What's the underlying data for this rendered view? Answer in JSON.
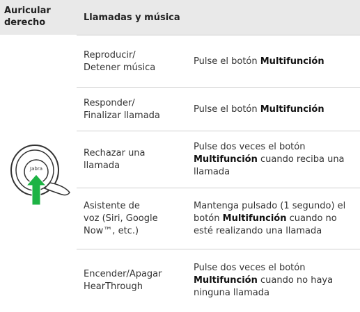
{
  "header": {
    "left": "Auricular derecho",
    "right": "Llamadas y música"
  },
  "rows": [
    {
      "action": [
        "Reproducir/",
        "Detener música"
      ],
      "description": [
        {
          "text": "Pulse el botón "
        },
        {
          "text": "Multifunción",
          "strong": true
        }
      ]
    },
    {
      "action": [
        "Responder/",
        "Finalizar llamada"
      ],
      "description": [
        {
          "text": "Pulse el botón "
        },
        {
          "text": "Multifunción",
          "strong": true
        }
      ]
    },
    {
      "action": [
        "Rechazar una",
        "llamada"
      ],
      "description": [
        {
          "text": "Pulse dos veces el botón "
        },
        {
          "text": "Multifunción",
          "strong": true
        },
        {
          "text": " cuando reciba una llamada"
        }
      ]
    },
    {
      "action": [
        "Asistente de",
        "voz (Siri, Google",
        "Now™, etc.)"
      ],
      "description": [
        {
          "text": "Mantenga pulsado (1 segundo) el botón "
        },
        {
          "text": "Multifunción",
          "strong": true
        },
        {
          "text": " cuando no esté realizando una llamada"
        }
      ]
    },
    {
      "action": [
        "Encender/Apagar",
        "HearThrough"
      ],
      "description": [
        {
          "text": "Pulse dos veces el botón "
        },
        {
          "text": "Multifunción",
          "strong": true
        },
        {
          "text": " cuando no haya ninguna llamada"
        }
      ]
    }
  ]
}
